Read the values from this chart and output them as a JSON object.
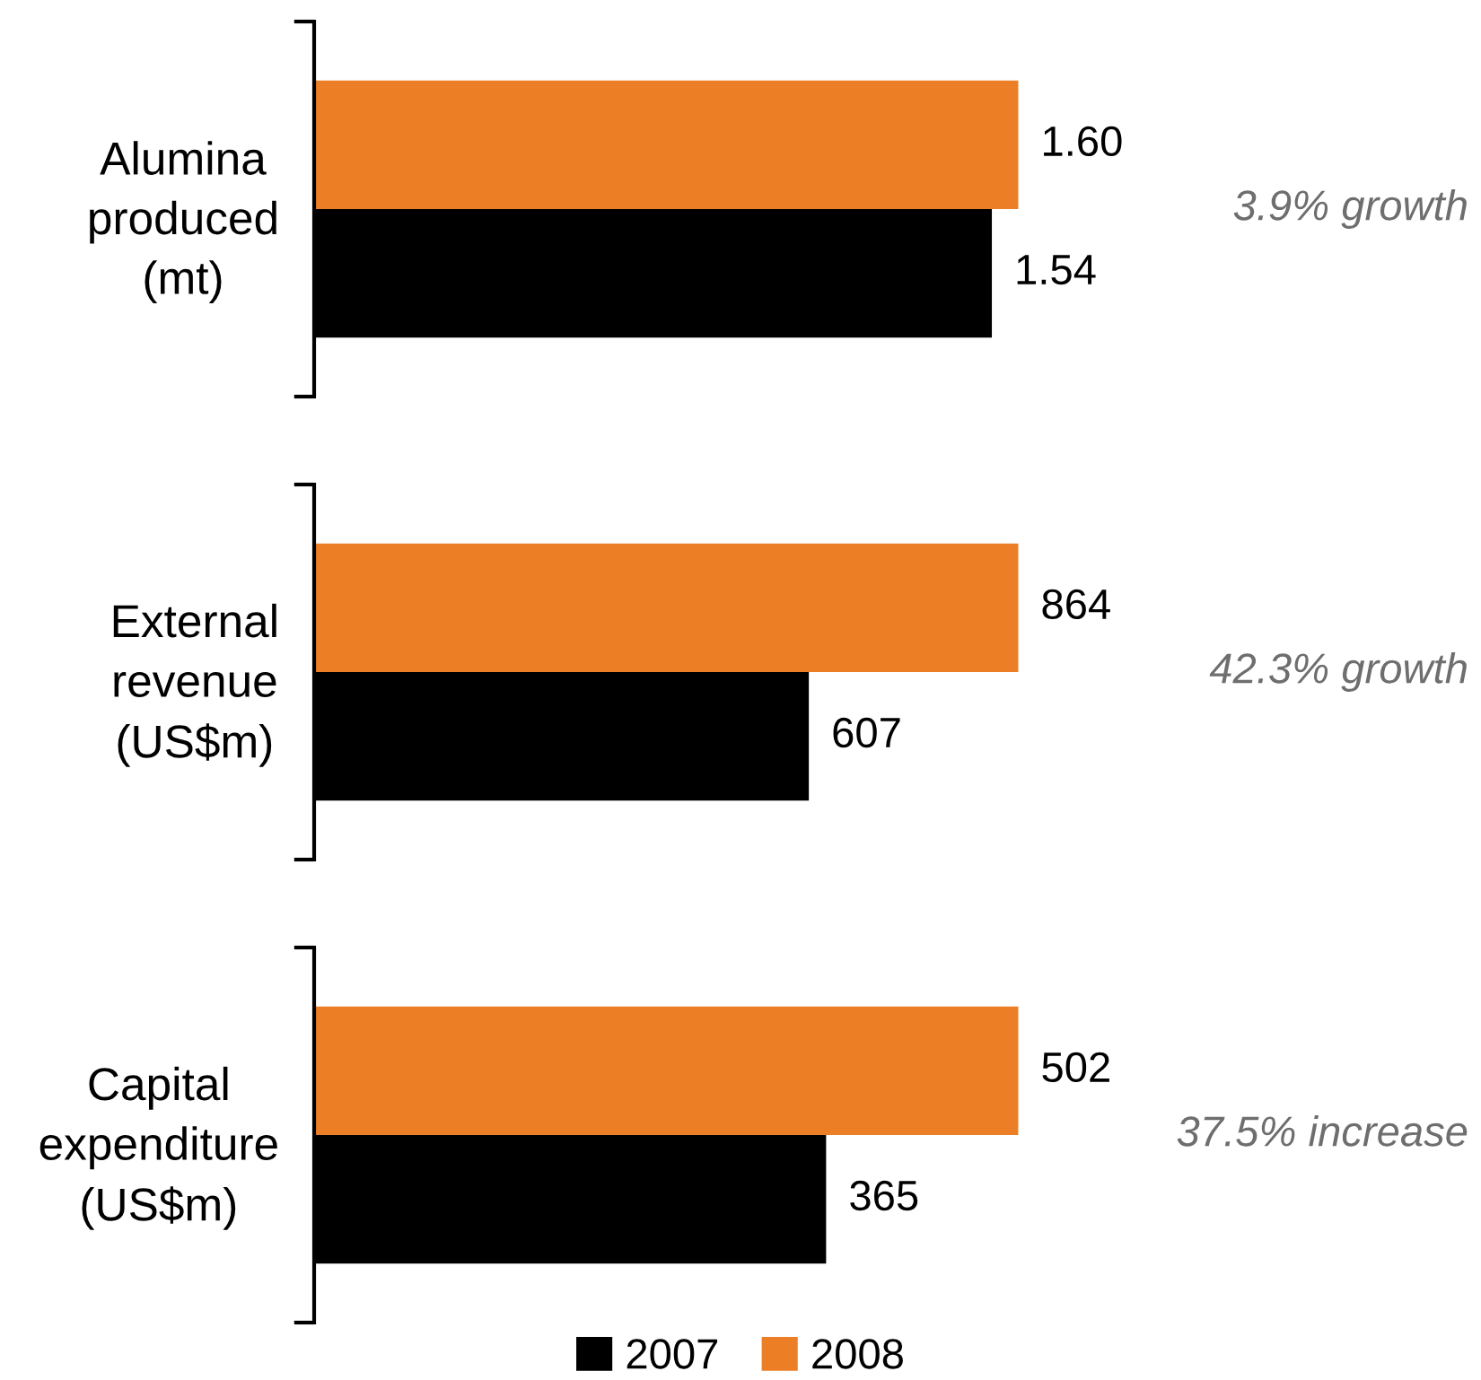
{
  "chart_data": [
    {
      "type": "bar",
      "orientation": "horizontal",
      "categories": [
        "Alumina produced (mt)"
      ],
      "series": [
        {
          "name": "2007",
          "color": "#000000",
          "values": [
            1.54
          ],
          "value_labels": [
            "1.54"
          ]
        },
        {
          "name": "2008",
          "color": "#ec7f25",
          "values": [
            1.6
          ],
          "value_labels": [
            "1.60"
          ]
        }
      ],
      "tick_labels": "y",
      "annotations": [
        "3.9% growth"
      ],
      "legend": "bottom"
    },
    {
      "type": "bar",
      "orientation": "horizontal",
      "categories": [
        "External revenue (US$m)"
      ],
      "series": [
        {
          "name": "2007",
          "color": "#000000",
          "values": [
            607
          ]
        },
        {
          "name": "2008",
          "color": "#ec7f25",
          "values": [
            864
          ]
        }
      ],
      "data_labels": true,
      "tick_labels": "y",
      "annotations": [
        "42.3% growth"
      ]
    },
    {
      "type": "bar",
      "orientation": "horizontal",
      "categories": [
        "Capital expenditure (US$m)"
      ],
      "series": [
        {
          "name": "2007",
          "color": "#000000",
          "values": [
            365
          ]
        },
        {
          "name": "2008",
          "color": "#ec7f25",
          "values": [
            502
          ]
        }
      ],
      "data_labels": true,
      "tick_labels": "y",
      "annotations": [
        "37.5% increase"
      ]
    }
  ]
}
